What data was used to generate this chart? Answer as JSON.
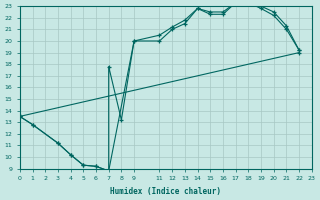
{
  "xlabel": "Humidex (Indice chaleur)",
  "xlim": [
    0,
    23
  ],
  "ylim": [
    9,
    23
  ],
  "xticks": [
    0,
    1,
    2,
    3,
    4,
    5,
    6,
    7,
    8,
    9,
    11,
    12,
    13,
    14,
    15,
    16,
    17,
    18,
    19,
    20,
    21,
    22,
    23
  ],
  "yticks": [
    9,
    10,
    11,
    12,
    13,
    14,
    15,
    16,
    17,
    18,
    19,
    20,
    21,
    22,
    23
  ],
  "bg_color": "#c8e8e4",
  "grid_color": "#a8c8c4",
  "line_color": "#006660",
  "line1_x": [
    0,
    1,
    3,
    4,
    5,
    6,
    7,
    7,
    8,
    9,
    11,
    12,
    13,
    14,
    15,
    16,
    17,
    18,
    19,
    20,
    21,
    22
  ],
  "line1_y": [
    13.5,
    12.8,
    11.2,
    10.2,
    9.3,
    9.2,
    8.8,
    17.8,
    13.2,
    20.0,
    20.0,
    21.0,
    21.5,
    22.8,
    22.3,
    22.3,
    23.3,
    23.3,
    22.8,
    22.2,
    21.0,
    19.2
  ],
  "line2_x": [
    0,
    1,
    3,
    4,
    5,
    6,
    7,
    9,
    11,
    12,
    13,
    14,
    15,
    16,
    17,
    18,
    19,
    20,
    21,
    22
  ],
  "line2_y": [
    13.5,
    12.8,
    11.2,
    10.2,
    9.3,
    9.2,
    8.8,
    20.0,
    20.5,
    21.2,
    21.8,
    22.8,
    22.5,
    22.5,
    23.3,
    23.3,
    23.0,
    22.5,
    21.3,
    19.2
  ],
  "line3_x": [
    0,
    22
  ],
  "line3_y": [
    13.5,
    19.0
  ]
}
